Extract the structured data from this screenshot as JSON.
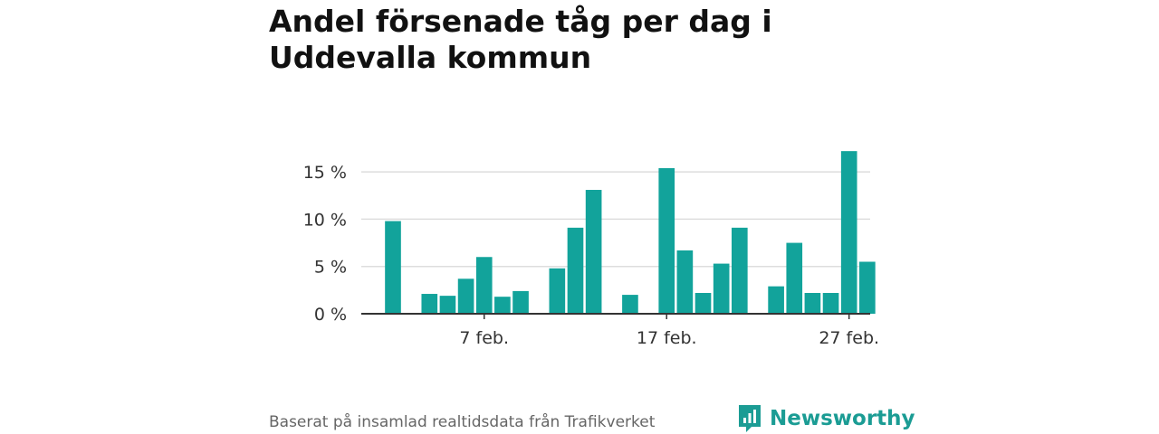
{
  "title": "Andel försenade tåg per dag i Uddevalla kommun",
  "source": "Baserat på insamlad realtidsdata från Trafikverket",
  "brand": {
    "name": "Newsworthy",
    "icon": "newsworthy-logo-icon"
  },
  "colors": {
    "bar": "#12a39b",
    "grid": "#dddddd",
    "axis": "#333333",
    "brand": "#1b9c94"
  },
  "chart_data": {
    "type": "bar",
    "title": "Andel försenade tåg per dag i Uddevalla kommun",
    "xlabel": "",
    "ylabel": "",
    "x_type": "date",
    "x": [
      "2024-02-02",
      "2024-02-03",
      "2024-02-04",
      "2024-02-05",
      "2024-02-06",
      "2024-02-07",
      "2024-02-08",
      "2024-02-09",
      "2024-02-10",
      "2024-02-11",
      "2024-02-12",
      "2024-02-13",
      "2024-02-14",
      "2024-02-15",
      "2024-02-16",
      "2024-02-17",
      "2024-02-18",
      "2024-02-19",
      "2024-02-20",
      "2024-02-21",
      "2024-02-22",
      "2024-02-23",
      "2024-02-24",
      "2024-02-25",
      "2024-02-26",
      "2024-02-27",
      "2024-02-28"
    ],
    "values": [
      9.8,
      null,
      2.1,
      1.9,
      3.7,
      6.0,
      1.8,
      2.4,
      null,
      4.8,
      9.1,
      13.1,
      null,
      2.0,
      null,
      15.4,
      6.7,
      2.2,
      5.3,
      9.1,
      null,
      2.9,
      7.5,
      2.2,
      2.2,
      17.2,
      5.5
    ],
    "ylim": [
      0,
      17.5
    ],
    "yticks": [
      0,
      5,
      10,
      15
    ],
    "ytick_labels": [
      "0 %",
      "5 %",
      "10 %",
      "15 %"
    ],
    "xticks": [
      "2024-02-07",
      "2024-02-17",
      "2024-02-27"
    ],
    "xtick_labels": [
      "7 feb.",
      "17 feb.",
      "27 feb."
    ],
    "grid": true,
    "legend": "none"
  }
}
